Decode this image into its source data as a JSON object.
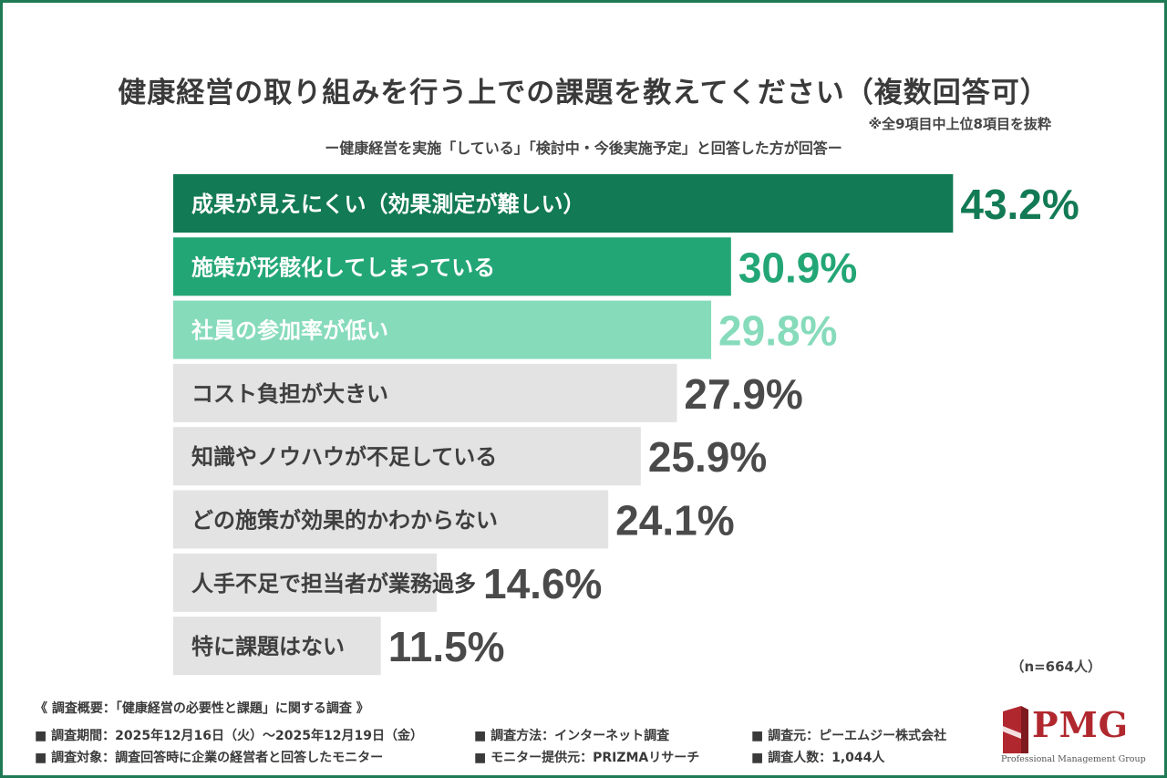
{
  "chart_data": {
    "type": "bar",
    "orientation": "horizontal",
    "title": "健康経営の取り組みを行う上での課題を教えてください（複数回答可）",
    "note": "※全9項目中上位8項目を抜粋",
    "subtitle": "ー健康経営を実施「している」「検討中・今後実施予定」と回答した方が回答ー",
    "unit": "%",
    "xlim": [
      0,
      45
    ],
    "categories": [
      "成果が見えにくい（効果測定が難しい）",
      "施策が形骸化してしまっている",
      "社員の参加率が低い",
      "コスト負担が大きい",
      "知識やノウハウが不足している",
      "どの施策が効果的かわからない",
      "人手不足で担当者が業務過多",
      "特に課題はない"
    ],
    "values": [
      43.2,
      30.9,
      29.8,
      27.9,
      25.9,
      24.1,
      14.6,
      11.5
    ],
    "value_labels": [
      "43.2%",
      "30.9%",
      "29.8%",
      "27.9%",
      "25.9%",
      "24.1%",
      "14.6%",
      "11.5%"
    ],
    "bar_colors": [
      "#127a54",
      "#23a675",
      "#86dbbb",
      "#e3e3e3",
      "#e3e3e3",
      "#e3e3e3",
      "#e3e3e3",
      "#e3e3e3"
    ],
    "label_colors": [
      "#ffffff",
      "#ffffff",
      "#ffffff",
      "#3f3f3f",
      "#3f3f3f",
      "#3f3f3f",
      "#3f3f3f",
      "#3f3f3f"
    ],
    "value_colors": [
      "#127a54",
      "#23a675",
      "#86dbbb",
      "#4a4a4a",
      "#4a4a4a",
      "#4a4a4a",
      "#4a4a4a",
      "#4a4a4a"
    ],
    "sample_size": "（n=664人）"
  },
  "footer": {
    "heading": "《 調査概要：「健康経営の必要性と課題」に関する調査 》",
    "rows": [
      [
        "■ 調査期間：2025年12月16日（火）～2025年12月19日（金）",
        "■ 調査方法：インターネット調査",
        "■ 調査元：ピーエムジー株式会社"
      ],
      [
        "■ 調査対象：調査回答時に企業の経営者と回答したモニター",
        "■ モニター提供元：PRIZMAリサーチ",
        "■ 調査人数：1,044人"
      ]
    ]
  },
  "logo": {
    "word": "PMG",
    "tagline": "Professional Management Group"
  },
  "colors": {
    "border": "#1e7a55",
    "brand": "#b0282e"
  }
}
